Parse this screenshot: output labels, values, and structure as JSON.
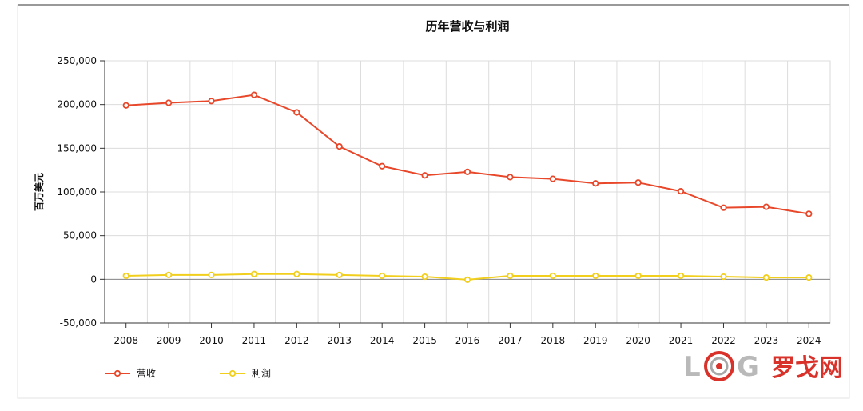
{
  "chart_data": {
    "type": "line",
    "title": "历年营收与利润",
    "xlabel": "",
    "ylabel": "百万美元",
    "categories": [
      "2008",
      "2009",
      "2010",
      "2011",
      "2012",
      "2013",
      "2014",
      "2015",
      "2016",
      "2017",
      "2018",
      "2019",
      "2020",
      "2021",
      "2022",
      "2023",
      "2024"
    ],
    "ylim": [
      -50000,
      250000
    ],
    "yticks": [
      -50000,
      0,
      50000,
      100000,
      150000,
      200000,
      250000
    ],
    "ytick_labels": [
      "-50,000",
      "0",
      "50,000",
      "100,000",
      "150,000",
      "200,000",
      "250,000"
    ],
    "grid": true,
    "legend_position": "bottom-left",
    "series": [
      {
        "name": "营收",
        "color": "#e8472a",
        "values": [
          199000,
          202000,
          204000,
          211000,
          191000,
          152000,
          129500,
          119000,
          123000,
          117000,
          115000,
          109800,
          110800,
          100800,
          82000,
          83000,
          75000
        ]
      },
      {
        "name": "利润",
        "color": "#f2cf1d",
        "values": [
          4000,
          5000,
          5000,
          6000,
          6000,
          5000,
          4000,
          3000,
          -500,
          4000,
          4000,
          4000,
          4000,
          4000,
          3000,
          2000,
          2000
        ]
      }
    ]
  },
  "watermark": {
    "text_latin": "LOG",
    "text_cn": "罗戈网"
  }
}
